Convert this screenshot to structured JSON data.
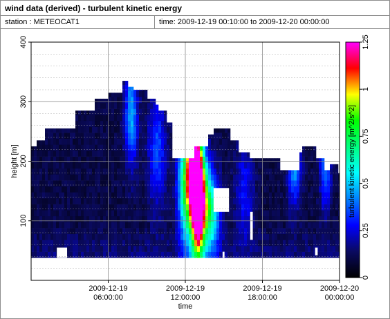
{
  "window": {
    "title": "wind data (derived) - turbulent kinetic energy",
    "station_text": "station : METEOCAT1",
    "time_text": "time: 2009-12-19 00:10:00 to 2009-12-20 00:00:00"
  },
  "chart_data": {
    "type": "heatmap",
    "xlabel": "time",
    "ylabel": "height [m]",
    "colorbar_label": "turbulent kinetic energy [m^2/s^2]",
    "xlim": [
      0,
      24
    ],
    "ylim": [
      0,
      400
    ],
    "x_ticks": [
      {
        "value": 6,
        "line1": "2009-12-19",
        "line2": "06:00:00"
      },
      {
        "value": 12,
        "line1": "2009-12-19",
        "line2": "12:00:00"
      },
      {
        "value": 18,
        "line1": "2009-12-19",
        "line2": "18:00:00"
      },
      {
        "value": 24,
        "line1": "2009-12-20",
        "line2": "00:00:00"
      }
    ],
    "y_ticks": [
      100,
      200,
      300,
      400
    ],
    "colorbar_range": [
      0,
      1.25
    ],
    "colorbar_ticks": [
      "0",
      "0.25",
      "0.5",
      "0.75",
      "1",
      "1.25"
    ],
    "colorscale": [
      "#000000",
      "#0a0a60",
      "#0000ff",
      "#0080ff",
      "#00ffff",
      "#00ff80",
      "#00ff00",
      "#ffff00",
      "#ff0000",
      "#ff00ff"
    ],
    "grid": true,
    "data_bottom_height": 38,
    "column_tops": [
      {
        "from": 0.0,
        "to": 0.5,
        "top": 225
      },
      {
        "from": 0.5,
        "to": 1.0,
        "top": 235
      },
      {
        "from": 1.0,
        "to": 3.4,
        "top": 255
      },
      {
        "from": 3.4,
        "to": 5.0,
        "top": 285
      },
      {
        "from": 5.0,
        "to": 6.0,
        "top": 305
      },
      {
        "from": 6.0,
        "to": 7.0,
        "top": 315
      },
      {
        "from": 7.0,
        "to": 7.5,
        "top": 335
      },
      {
        "from": 7.5,
        "to": 8.0,
        "top": 325
      },
      {
        "from": 8.0,
        "to": 9.0,
        "top": 320
      },
      {
        "from": 9.0,
        "to": 9.6,
        "top": 305
      },
      {
        "from": 9.6,
        "to": 10.0,
        "top": 295
      },
      {
        "from": 10.0,
        "to": 10.6,
        "top": 285
      },
      {
        "from": 10.6,
        "to": 11.0,
        "top": 265
      },
      {
        "from": 11.0,
        "to": 12.8,
        "top": 205
      },
      {
        "from": 12.8,
        "to": 13.8,
        "top": 225
      },
      {
        "from": 13.8,
        "to": 14.2,
        "top": 245
      },
      {
        "from": 14.2,
        "to": 15.4,
        "top": 255
      },
      {
        "from": 15.4,
        "to": 16.2,
        "top": 235
      },
      {
        "from": 16.2,
        "to": 17.0,
        "top": 215
      },
      {
        "from": 17.0,
        "to": 19.4,
        "top": 205
      },
      {
        "from": 19.4,
        "to": 20.8,
        "top": 185
      },
      {
        "from": 20.8,
        "to": 21.2,
        "top": 215
      },
      {
        "from": 21.2,
        "to": 22.2,
        "top": 225
      },
      {
        "from": 22.2,
        "to": 22.8,
        "top": 205
      },
      {
        "from": 22.8,
        "to": 23.2,
        "top": 185
      },
      {
        "from": 23.2,
        "to": 23.8,
        "top": 195
      },
      {
        "from": 23.8,
        "to": 24.0,
        "top": 180
      }
    ],
    "energy_hotspots": [
      {
        "x": 12.95,
        "sigma_x": 0.32,
        "peak_height": 150,
        "sigma_h": 80,
        "amp": 1.0
      },
      {
        "x": 12.45,
        "sigma_x": 0.35,
        "peak_height": 175,
        "sigma_h": 70,
        "amp": 0.62
      },
      {
        "x": 13.4,
        "sigma_x": 0.45,
        "peak_height": 130,
        "sigma_h": 55,
        "amp": 0.5
      },
      {
        "x": 11.9,
        "sigma_x": 0.4,
        "peak_height": 160,
        "sigma_h": 70,
        "amp": 0.38
      },
      {
        "x": 14.1,
        "sigma_x": 0.5,
        "peak_height": 110,
        "sigma_h": 45,
        "amp": 0.32
      },
      {
        "x": 7.8,
        "sigma_x": 0.35,
        "peak_height": 280,
        "sigma_h": 60,
        "amp": 0.3
      },
      {
        "x": 20.5,
        "sigma_x": 0.35,
        "peak_height": 200,
        "sigma_h": 50,
        "amp": 0.3
      },
      {
        "x": 22.9,
        "sigma_x": 0.3,
        "peak_height": 190,
        "sigma_h": 50,
        "amp": 0.25
      },
      {
        "x": 9.8,
        "sigma_x": 0.5,
        "peak_height": 220,
        "sigma_h": 70,
        "amp": 0.2
      },
      {
        "x": 16.6,
        "sigma_x": 0.5,
        "peak_height": 150,
        "sigma_h": 60,
        "amp": 0.15
      }
    ],
    "missing_data_gaps": [
      {
        "x0": 2.0,
        "x1": 2.8,
        "h0": 38,
        "h1": 55
      },
      {
        "x0": 14.2,
        "x1": 15.4,
        "h0": 115,
        "h1": 155
      },
      {
        "x0": 17.05,
        "x1": 17.25,
        "h0": 68,
        "h1": 115
      },
      {
        "x0": 14.9,
        "x1": 15.05,
        "h0": 38,
        "h1": 48
      },
      {
        "x0": 22.1,
        "x1": 22.3,
        "h0": 42,
        "h1": 55
      }
    ]
  }
}
